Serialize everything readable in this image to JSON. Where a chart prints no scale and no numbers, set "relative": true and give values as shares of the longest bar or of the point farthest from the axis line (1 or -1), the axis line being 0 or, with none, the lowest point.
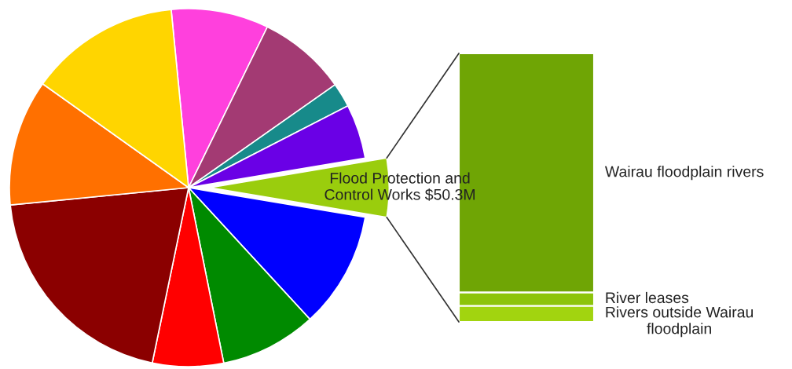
{
  "chart_data": [
    {
      "type": "pie",
      "categories": [
        null,
        null,
        null,
        null,
        "Flood Protection and\nControl Works $50.3M",
        null,
        null,
        null,
        null,
        null,
        null
      ],
      "values": [
        8.8,
        8.0,
        2.2,
        4.9,
        5.3,
        10.5,
        8.7,
        6.4,
        20.2,
        11.4,
        13.6
      ],
      "colors": [
        "#ff40dd",
        "#a33a73",
        "#178a8a",
        "#6a00e6",
        "#9acd0d",
        "#0000ff",
        "#008a00",
        "#ff0000",
        "#8b0000",
        "#ff7000",
        "#ffd500"
      ]
    },
    {
      "type": "bar",
      "categories": [
        null
      ],
      "stacked": true,
      "relative": true,
      "series": [
        {
          "name": "Rivers outside Wairau\nfloodplain",
          "color": "#a2d40f",
          "values": [
            0.06
          ]
        },
        {
          "name": "River leases",
          "color": "#8cc40a",
          "values": [
            0.05
          ]
        },
        {
          "name": "Wairau floodplain rivers",
          "color": "#6fa505",
          "values": [
            0.89
          ]
        }
      ]
    }
  ]
}
